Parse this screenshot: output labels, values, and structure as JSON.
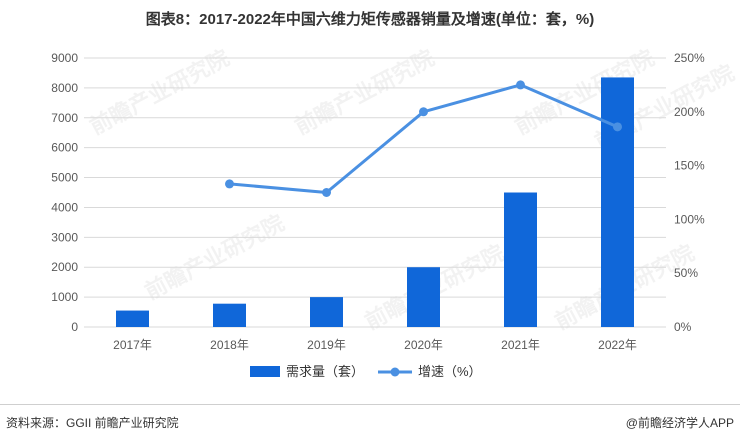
{
  "header": {
    "title": "图表8：2017-2022年中国六维力矩传感器销量及增速(单位：套，%)"
  },
  "footer": {
    "source": "资料来源：GGII 前瞻产业研究院",
    "credit": "@前瞻经济学人APP"
  },
  "watermark": {
    "text": "前瞻产业研究院"
  },
  "colors": {
    "bar": "#1067D9",
    "line": "#4A90E2",
    "grid": "#D9D9D9",
    "axis_text": "#595959"
  },
  "chart_data": {
    "type": "bar",
    "categories": [
      "2017年",
      "2018年",
      "2019年",
      "2020年",
      "2021年",
      "2022年"
    ],
    "series": [
      {
        "name": "需求量（套）",
        "type": "bar",
        "axis": "left",
        "values": [
          550,
          780,
          1000,
          2000,
          4500,
          8350
        ]
      },
      {
        "name": "增速（%）",
        "type": "line",
        "axis": "right",
        "values": [
          null,
          133,
          125,
          200,
          225,
          186
        ]
      }
    ],
    "y_left": {
      "ylim": [
        0,
        9000
      ],
      "ticks": [
        "0",
        "1000",
        "2000",
        "3000",
        "4000",
        "5000",
        "6000",
        "7000",
        "8000",
        "9000"
      ]
    },
    "y_right": {
      "ylim": [
        0,
        250
      ],
      "ticks": [
        "0%",
        "50%",
        "100%",
        "150%",
        "200%",
        "250%"
      ]
    },
    "grid": true,
    "legend": "bottom"
  }
}
